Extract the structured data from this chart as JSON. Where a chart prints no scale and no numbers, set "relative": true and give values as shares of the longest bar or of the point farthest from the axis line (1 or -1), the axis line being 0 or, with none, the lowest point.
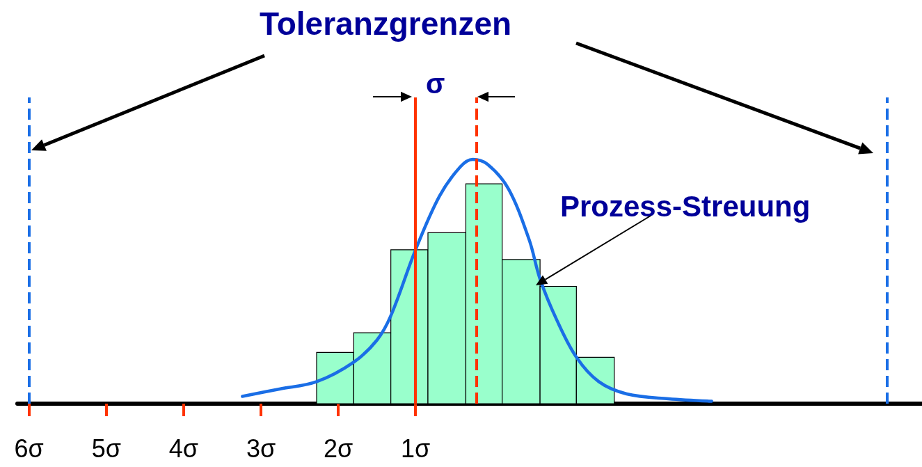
{
  "chart_data": {
    "type": "histogram",
    "relative": true,
    "title": "Toleranzgrenzen",
    "annotations": [
      "σ",
      "Prozess-Streuung"
    ],
    "xlim": [
      -6.15,
      5.55
    ],
    "xticks": [
      {
        "value": -6,
        "label": "6σ"
      },
      {
        "value": -5,
        "label": "5σ"
      },
      {
        "value": -4,
        "label": "4σ"
      },
      {
        "value": -3,
        "label": "3σ"
      },
      {
        "value": -2,
        "label": "2σ"
      },
      {
        "value": -1,
        "label": "1σ"
      }
    ],
    "grid": false,
    "marker": "none",
    "bins": [
      -2.28,
      -1.8,
      -1.32,
      -0.84,
      -0.35,
      0.12,
      0.61,
      1.08,
      1.57
    ],
    "values": [
      0.21,
      0.29,
      0.63,
      0.7,
      0.9,
      0.59,
      0.48,
      0.19
    ],
    "color": "#99ffcc",
    "series": [
      {
        "type": "line",
        "color": "#1a6ee6",
        "line_style": "solid",
        "x": [
          -3.24,
          -2.76,
          -2.28,
          -1.8,
          -1.5,
          -1.32,
          -1.0,
          -0.69,
          -0.42,
          -0.26,
          -0.07,
          0.2,
          0.47,
          0.61,
          0.83,
          1.08,
          1.37,
          1.73,
          2.27,
          2.83
        ],
        "values": [
          0.03,
          0.06,
          0.09,
          0.17,
          0.26,
          0.36,
          0.63,
          0.85,
          0.97,
          1,
          0.98,
          0.88,
          0.67,
          0.51,
          0.34,
          0.19,
          0.09,
          0.04,
          0.02,
          0.01
        ]
      }
    ],
    "ref_lines": [
      {
        "axis": "x",
        "value": -6,
        "color": "#1a6ee6",
        "line_style": "dashed"
      },
      {
        "axis": "x",
        "value": 5.1,
        "color": "#1a6ee6",
        "line_style": "dashed"
      },
      {
        "axis": "x",
        "value": -1,
        "color": "#ff3300",
        "line_style": "solid"
      },
      {
        "axis": "x",
        "value": -0.21,
        "color": "#ff3300",
        "line_style": "dashed"
      }
    ]
  }
}
